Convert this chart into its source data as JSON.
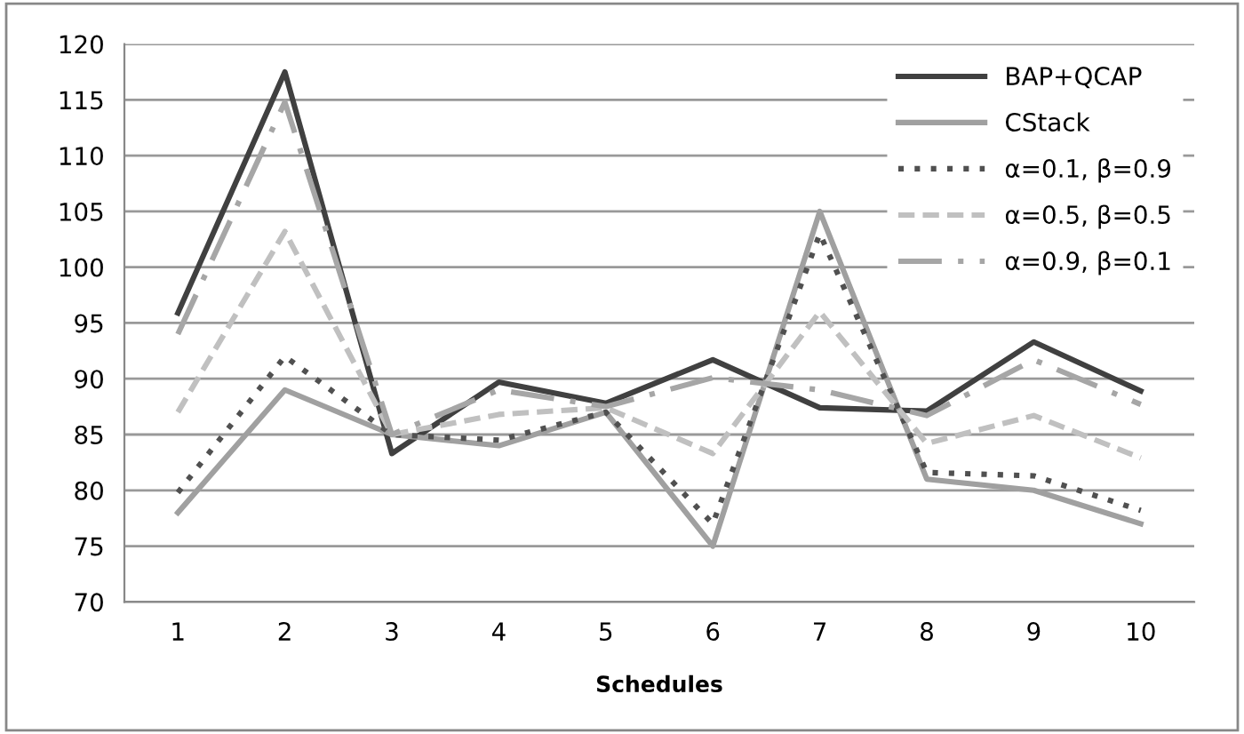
{
  "chart_data": {
    "type": "line",
    "xlabel": "Schedules",
    "categories": [
      "1",
      "2",
      "3",
      "4",
      "5",
      "6",
      "7",
      "8",
      "9",
      "10"
    ],
    "ylim": [
      70,
      120
    ],
    "yticks": [
      70,
      75,
      80,
      85,
      90,
      95,
      100,
      105,
      110,
      115,
      120
    ],
    "grid": "y",
    "legend": "top right",
    "marker": "none",
    "series": [
      {
        "name": "BAP+QCAP",
        "color": "#404040",
        "line_style": "solid",
        "values": [
          95.9,
          117.5,
          83.3,
          89.7,
          87.8,
          91.7,
          87.4,
          87.1,
          93.3,
          88.9
        ]
      },
      {
        "name": "CStack",
        "color": "#a0a0a0",
        "line_style": "solid",
        "values": [
          78,
          89,
          85,
          84,
          87,
          75,
          105,
          81,
          80,
          77
        ]
      },
      {
        "name": "α=0.1, β=0.9",
        "color": "#505050",
        "line_style": "dotted",
        "values": [
          79.8,
          92,
          85,
          84.5,
          87,
          77,
          103,
          81.6,
          81.3,
          78.2
        ]
      },
      {
        "name": "α=0.5, β=0.5",
        "color": "#c0c0c0",
        "line_style": "dashed",
        "values": [
          87,
          103.2,
          85,
          86.8,
          87.4,
          83.3,
          96,
          84.2,
          86.7,
          82.9
        ]
      },
      {
        "name": "α=0.9, β=0.1",
        "color": "#a6a6a6",
        "line_style": "dashdot",
        "values": [
          94,
          114.8,
          85,
          89,
          87.5,
          90.1,
          89,
          86.7,
          91.7,
          87.7
        ]
      }
    ]
  }
}
